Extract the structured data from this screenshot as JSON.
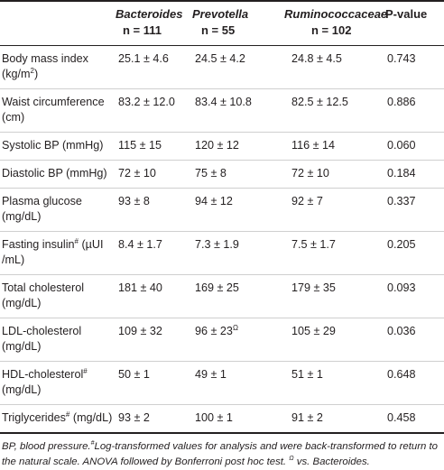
{
  "table": {
    "headers": {
      "group1_name": "Bacteroides",
      "group1_n": "n = 111",
      "group2_name": "Prevotella",
      "group2_n": "n = 55",
      "group3_name": "Ruminococcaceae",
      "group3_n": "n = 102",
      "pvalue": "P-value"
    },
    "rows": [
      {
        "label": "Body mass index (kg/m",
        "label_sup": "2",
        "label_after": ")",
        "g1": "25.1 ± 4.6",
        "g2": "24.5 ± 4.2",
        "g2_sup": "",
        "g3": "24.8 ± 4.5",
        "p": "0.743"
      },
      {
        "label": "Waist circumference (cm)",
        "label_sup": "",
        "label_after": "",
        "g1": "83.2 ± 12.0",
        "g2": "83.4 ± 10.8",
        "g2_sup": "",
        "g3": "82.5 ± 12.5",
        "p": "0.886"
      },
      {
        "label": "Systolic BP (mmHg)",
        "label_sup": "",
        "label_after": "",
        "g1": "115 ± 15",
        "g2": "120 ± 12",
        "g2_sup": "",
        "g3": "116 ± 14",
        "p": "0.060"
      },
      {
        "label": "Diastolic BP (mmHg)",
        "label_sup": "",
        "label_after": "",
        "g1": "72 ± 10",
        "g2": "75 ± 8",
        "g2_sup": "",
        "g3": "72 ± 10",
        "p": "0.184"
      },
      {
        "label": "Plasma glucose (mg/dL)",
        "label_sup": "",
        "label_after": "",
        "g1": "93 ± 8",
        "g2": "94 ± 12",
        "g2_sup": "",
        "g3": "92 ± 7",
        "p": "0.337"
      },
      {
        "label": "Fasting insulin",
        "label_sup": "#",
        "label_after": " (µUI /mL)",
        "g1": "8.4 ± 1.7",
        "g2": "7.3 ± 1.9",
        "g2_sup": "",
        "g3": "7.5 ± 1.7",
        "p": "0.205"
      },
      {
        "label": "Total cholesterol (mg/dL)",
        "label_sup": "",
        "label_after": "",
        "g1": "181 ± 40",
        "g2": "169 ± 25",
        "g2_sup": "",
        "g3": "179 ± 35",
        "p": "0.093"
      },
      {
        "label": "LDL-cholesterol (mg/dL)",
        "label_sup": "",
        "label_after": "",
        "g1": "109 ± 32",
        "g2": "96 ± 23",
        "g2_sup": "Ω",
        "g3": "105 ± 29",
        "p": "0.036"
      },
      {
        "label": "HDL-cholesterol",
        "label_sup": "#",
        "label_after": " (mg/dL)",
        "g1": "50 ± 1",
        "g2": "49 ± 1",
        "g2_sup": "",
        "g3": "51 ± 1",
        "p": "0.648"
      },
      {
        "label": "Triglycerides",
        "label_sup": "#",
        "label_after": " (mg/dL)",
        "g1": "93 ± 2",
        "g2": "100 ± 1",
        "g2_sup": "",
        "g3": "91 ± 2",
        "p": "0.458"
      }
    ]
  },
  "footnote": {
    "part1": "BP, blood pressure.",
    "sup1": "#",
    "part2": "Log-transformed values for analysis and were back-transformed to return to the natural scale. ANOVA followed by Bonferroni post hoc test. ",
    "sup2": "Ω",
    "part3": " vs. Bacteroides."
  }
}
